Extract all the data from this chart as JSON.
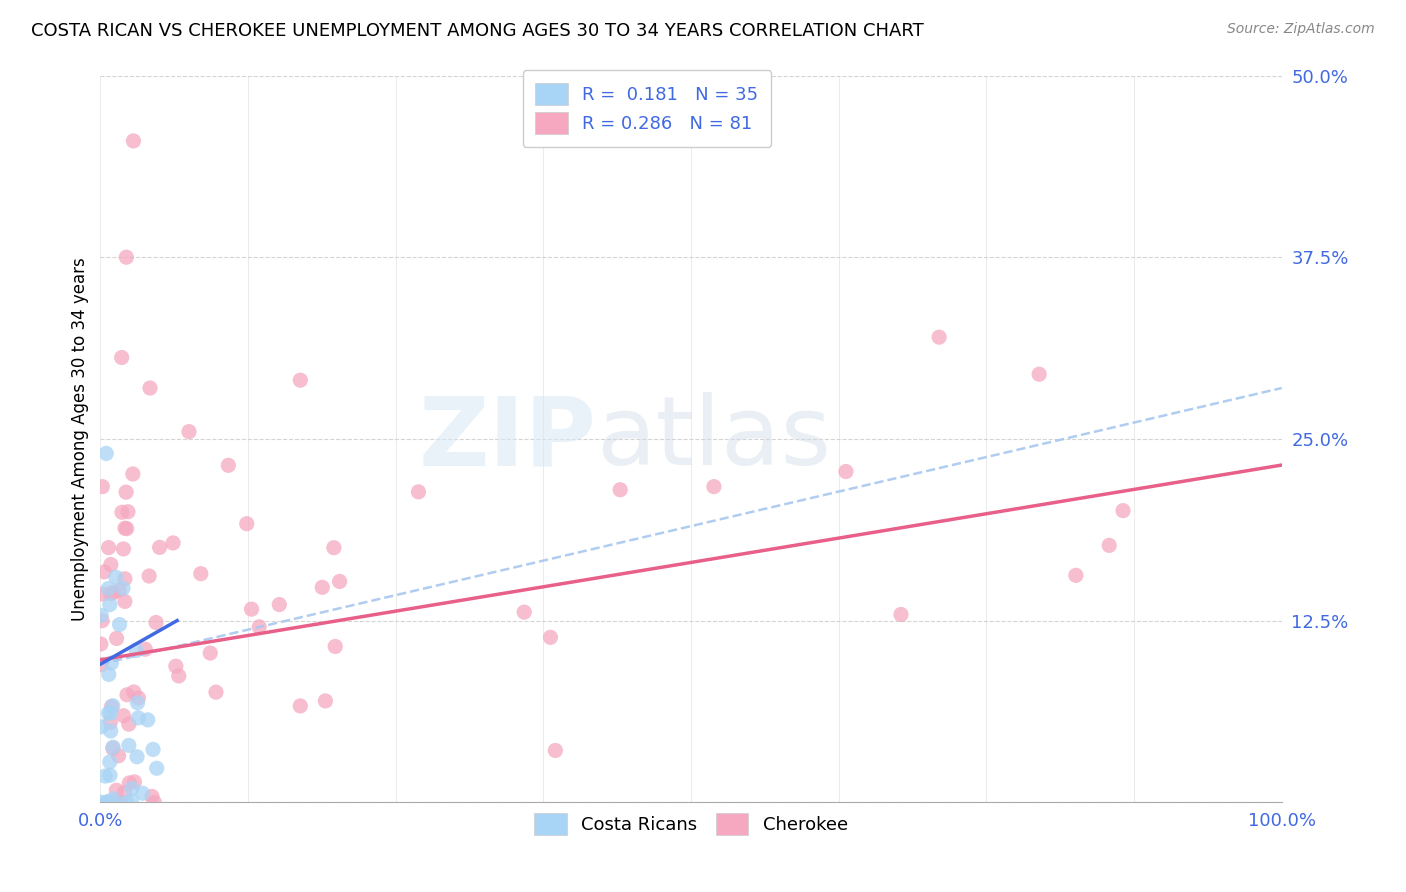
{
  "title": "COSTA RICAN VS CHEROKEE UNEMPLOYMENT AMONG AGES 30 TO 34 YEARS CORRELATION CHART",
  "source": "Source: ZipAtlas.com",
  "ylabel": "Unemployment Among Ages 30 to 34 years",
  "xlim": [
    0.0,
    1.0
  ],
  "ylim": [
    0.0,
    0.5
  ],
  "watermark_zip": "ZIP",
  "watermark_atlas": "atlas",
  "blue_color": "#a8d4f5",
  "pink_color": "#f5a8c0",
  "blue_line_color": "#4169E1",
  "pink_line_color": "#e8608a",
  "dashed_line_color": "#a8c8f0",
  "ytick_color": "#4169E1",
  "xtick_color": "#4169E1",
  "grid_color": "#d0d0d0",
  "blue_R": 0.181,
  "blue_N": 35,
  "pink_R": 0.286,
  "pink_N": 81,
  "pink_line_start_y": 0.098,
  "pink_line_end_y": 0.232,
  "dashed_line_start_x": 0.0,
  "dashed_line_start_y": 0.095,
  "dashed_line_end_x": 1.0,
  "dashed_line_end_y": 0.285
}
